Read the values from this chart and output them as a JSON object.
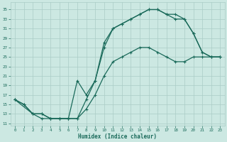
{
  "xlabel": "Humidex (Indice chaleur)",
  "bg_color": "#cce8e2",
  "grid_color": "#aaccC6",
  "line_color": "#1a6a5a",
  "xlim": [
    -0.5,
    23.5
  ],
  "ylim": [
    10.5,
    36.5
  ],
  "yticks": [
    11,
    13,
    15,
    17,
    19,
    21,
    23,
    25,
    27,
    29,
    31,
    33,
    35
  ],
  "xticks": [
    0,
    1,
    2,
    3,
    4,
    5,
    6,
    7,
    8,
    9,
    10,
    11,
    12,
    13,
    14,
    15,
    16,
    17,
    18,
    19,
    20,
    21,
    22,
    23
  ],
  "line1_x": [
    0,
    1,
    2,
    3,
    4,
    5,
    6,
    7,
    8,
    9,
    10,
    11,
    12,
    13,
    14,
    15,
    16,
    17,
    18,
    19,
    20,
    21,
    22,
    23
  ],
  "line1_y": [
    16,
    15,
    13,
    12,
    12,
    12,
    12,
    12,
    16,
    20,
    28,
    31,
    32,
    33,
    34,
    35,
    35,
    34,
    34,
    33,
    30,
    26,
    25,
    25
  ],
  "line2_x": [
    0,
    2,
    3,
    4,
    5,
    6,
    7,
    8,
    9,
    10,
    11,
    12,
    13,
    14,
    15,
    16,
    17,
    18,
    19,
    20,
    21,
    22,
    23
  ],
  "line2_y": [
    16,
    13,
    13,
    12,
    12,
    12,
    20,
    17,
    20,
    27,
    31,
    32,
    33,
    34,
    35,
    35,
    34,
    33,
    33,
    30,
    26,
    25,
    25
  ],
  "line3_x": [
    0,
    1,
    2,
    3,
    4,
    5,
    6,
    7,
    8,
    9,
    10,
    11,
    12,
    13,
    14,
    15,
    16,
    17,
    18,
    19,
    20,
    21,
    22,
    23
  ],
  "line3_y": [
    16,
    15,
    13,
    13,
    12,
    12,
    12,
    12,
    14,
    17,
    21,
    24,
    25,
    26,
    27,
    27,
    26,
    25,
    24,
    24,
    25,
    25,
    25,
    25
  ]
}
